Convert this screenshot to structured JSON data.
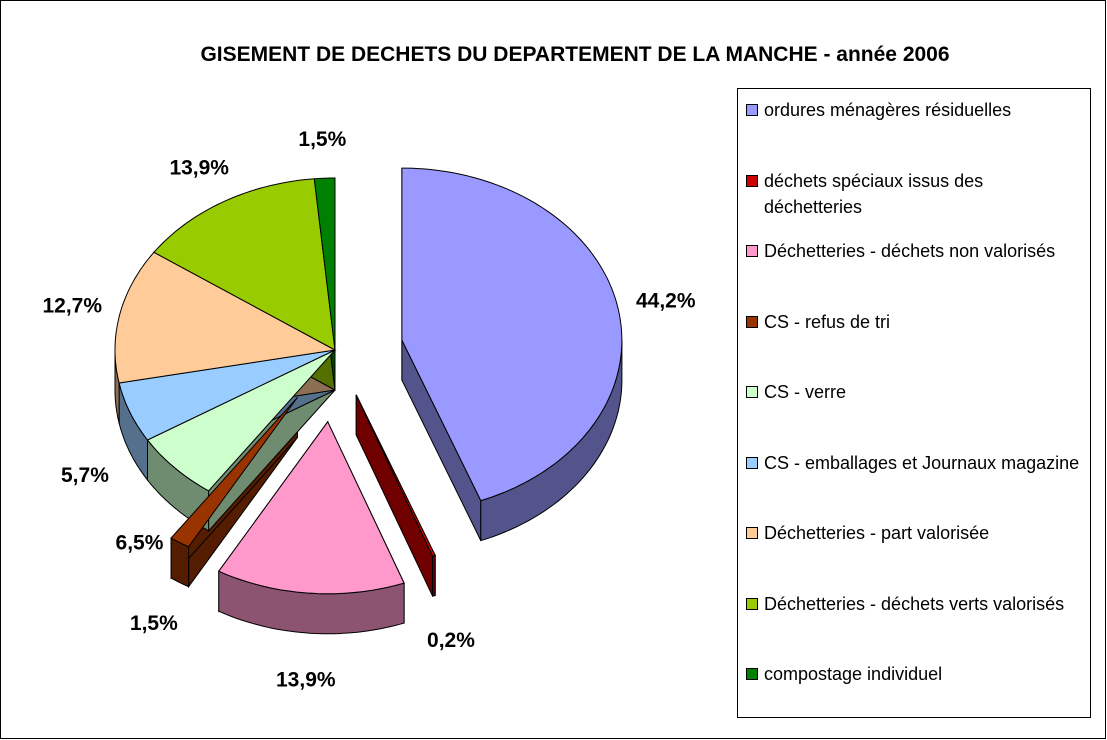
{
  "chart_data": {
    "type": "pie",
    "title": "GISEMENT DE DECHETS DU DEPARTEMENT DE LA MANCHE - année 2006",
    "categories": [
      "ordures ménagères résiduelles",
      "déchets spéciaux issus des déchetteries",
      "Déchetteries - déchets non valorisés",
      "CS - refus de tri",
      "CS - verre",
      "CS - emballages et Journaux magazine",
      "Déchetteries - part valorisée",
      "Déchetteries - déchets verts valorisés",
      "compostage individuel"
    ],
    "values": [
      44.2,
      0.2,
      13.9,
      1.5,
      6.5,
      5.7,
      12.7,
      13.9,
      1.5
    ],
    "value_labels": [
      "44,2%",
      "0,2%",
      "13,9%",
      "1,5%",
      "6,5%",
      "5,7%",
      "12,7%",
      "13,9%",
      "1,5%"
    ],
    "colors": [
      "#9999FF",
      "#CC0000",
      "#FF99CC",
      "#993300",
      "#CCFFCC",
      "#99CCFF",
      "#FFCC99",
      "#99CC00",
      "#008000"
    ],
    "legend": "right"
  }
}
